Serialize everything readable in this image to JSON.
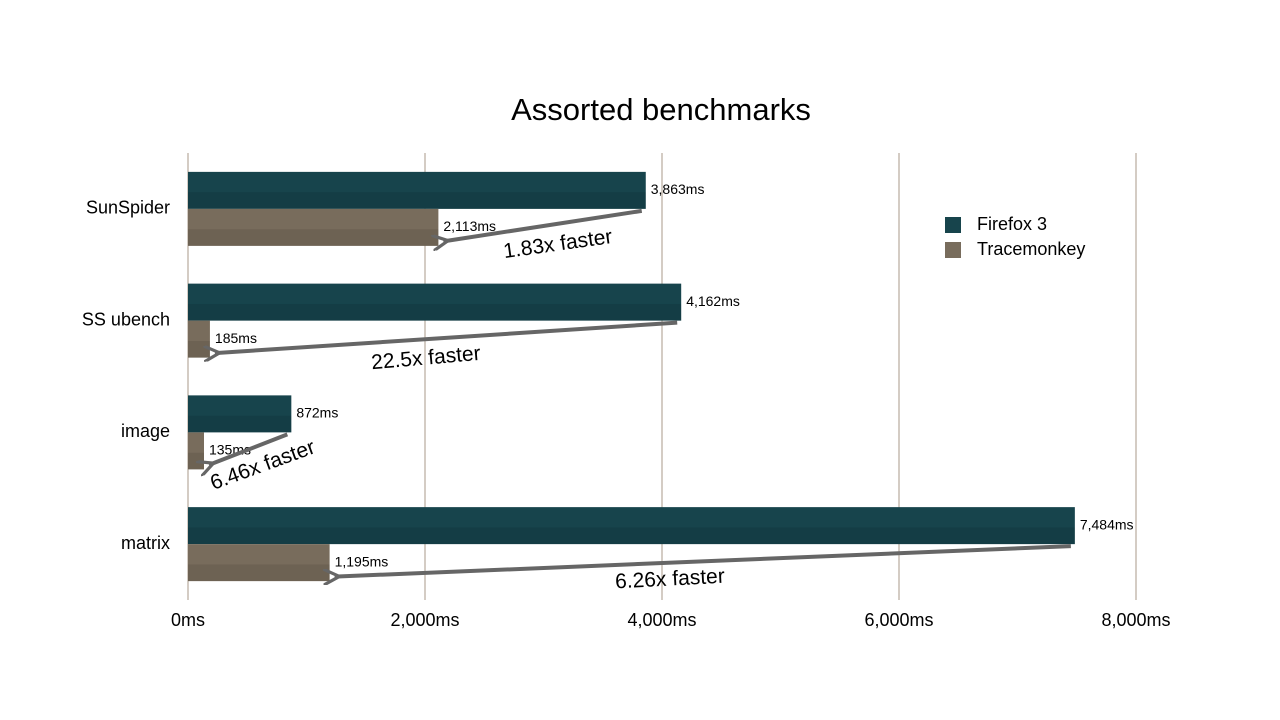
{
  "chart_data": {
    "type": "hbar",
    "title": "Assorted benchmarks",
    "categories": [
      "SunSpider",
      "SS ubench",
      "image",
      "matrix"
    ],
    "series": [
      {
        "name": "Firefox 3",
        "color": "#17444c",
        "values": [
          3863,
          4162,
          872,
          7484
        ],
        "value_labels": [
          "3,863ms",
          "4,162ms",
          "872ms",
          "7,484ms"
        ]
      },
      {
        "name": "Tracemonkey",
        "color": "#786c5c",
        "values": [
          2113,
          185,
          135,
          1195
        ],
        "value_labels": [
          "2,113ms",
          "185ms",
          "135ms",
          "1,195ms"
        ]
      }
    ],
    "annotations": [
      "1.83x faster",
      "22.5x faster",
      "6.46x faster",
      "6.26x faster"
    ],
    "xlim": [
      0,
      8000
    ],
    "xticks": [
      {
        "value": 0,
        "label": "0ms"
      },
      {
        "value": 2000,
        "label": "2,000ms"
      },
      {
        "value": 4000,
        "label": "4,000ms"
      },
      {
        "value": 6000,
        "label": "6,000ms"
      },
      {
        "value": 8000,
        "label": "8,000ms"
      }
    ],
    "grid": true,
    "legend": "upper right"
  }
}
